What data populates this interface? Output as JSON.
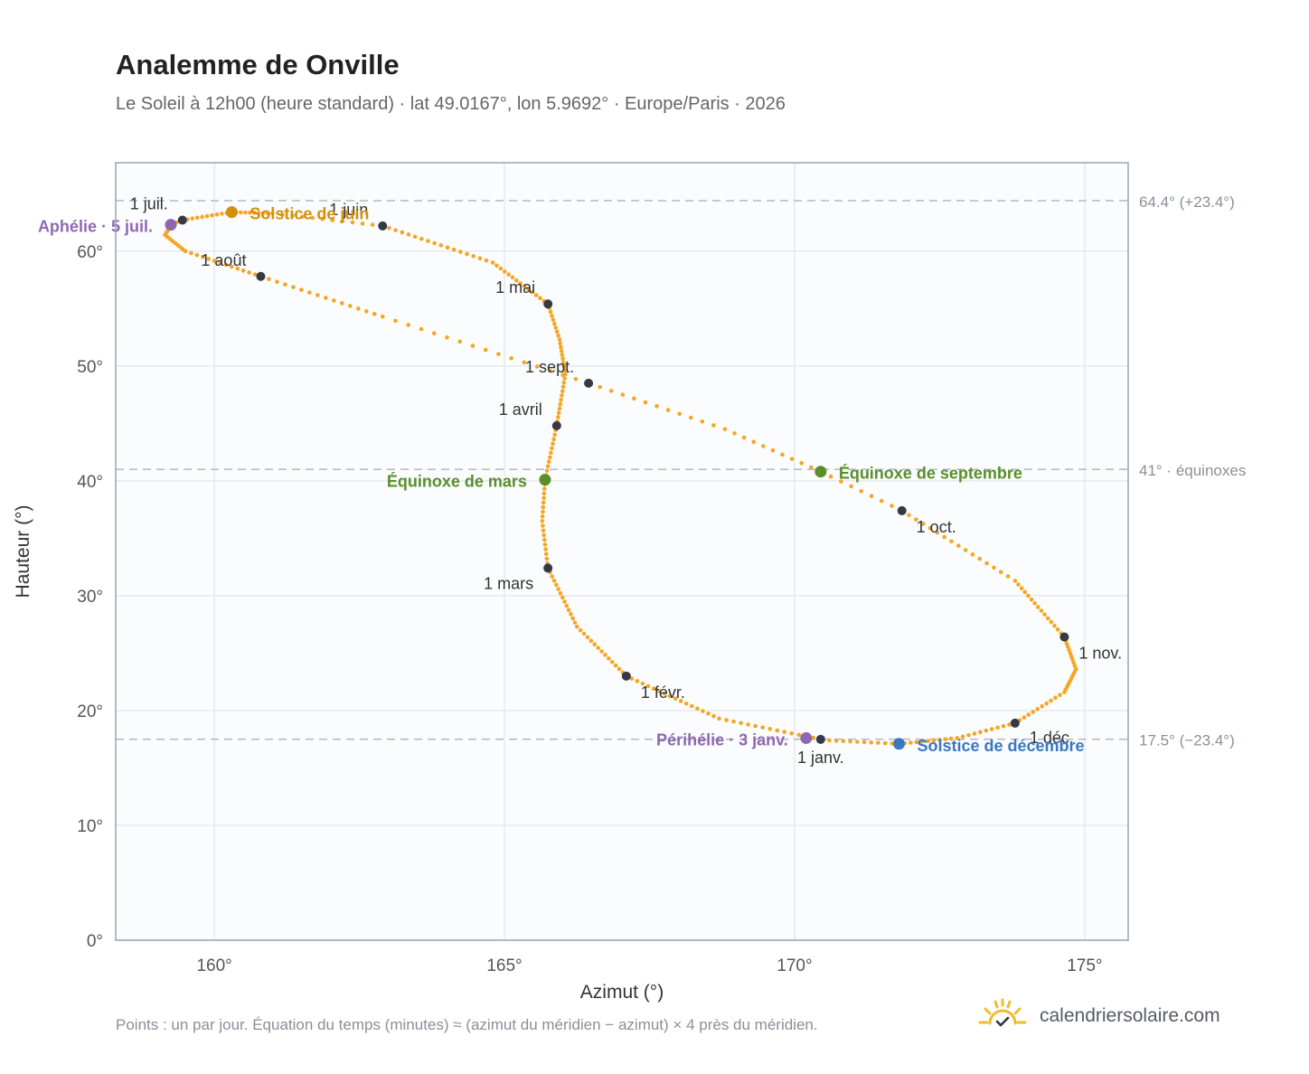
{
  "header": {
    "title": "Analemme de Onville",
    "subtitle": "Le Soleil à 12h00 (heure standard) · lat 49.0167°, lon 5.9692° · Europe/Paris · 2026"
  },
  "footer": {
    "note": "Points : un par jour. Équation du temps (minutes) ≈ (azimut du méridien − azimut) × 4 près du méridien.",
    "brand": "calendriersolaire.com",
    "brand_icon": "sun-check-icon"
  },
  "colors": {
    "curve": "#f5a623",
    "month_marker": "#333a44",
    "solstice_june": "#d4900a",
    "solstice_december": "#3a78c2",
    "equinox": "#5a8f2a",
    "apsis": "#8e68b0",
    "plot_bg": "#fafcfe",
    "grid": "#e6e9ee",
    "frame": "#9aa3b0",
    "refline": "#b8bec7"
  },
  "chart_data": {
    "type": "scatter",
    "xlabel": "Azimut (°)",
    "ylabel": "Hauteur (°)",
    "xlim": [
      158.3,
      175.75
    ],
    "ylim": [
      0,
      67.7
    ],
    "x_ticks": [
      {
        "value": 160,
        "label": "160°"
      },
      {
        "value": 165,
        "label": "165°"
      },
      {
        "value": 170,
        "label": "170°"
      },
      {
        "value": 175,
        "label": "175°"
      }
    ],
    "y_ticks": [
      {
        "value": 0,
        "label": "0°"
      },
      {
        "value": 10,
        "label": "10°"
      },
      {
        "value": 20,
        "label": "20°"
      },
      {
        "value": 30,
        "label": "30°"
      },
      {
        "value": 40,
        "label": "40°"
      },
      {
        "value": 50,
        "label": "50°"
      },
      {
        "value": 60,
        "label": "60°"
      }
    ],
    "grid": true,
    "reference_lines": [
      {
        "y": 64.4,
        "label": "64.4° (+23.4°)"
      },
      {
        "y": 41.0,
        "label": "41° · équinoxes"
      },
      {
        "y": 17.5,
        "label": "17.5° (−23.4°)"
      }
    ],
    "daily_path": [
      {
        "day": 1,
        "az": 170.45,
        "alt": 17.49
      },
      {
        "day": 15,
        "az": 168.7,
        "alt": 19.3
      },
      {
        "day": 32,
        "az": 167.1,
        "alt": 23.0
      },
      {
        "day": 46,
        "az": 166.25,
        "alt": 27.3
      },
      {
        "day": 60,
        "az": 165.75,
        "alt": 32.4
      },
      {
        "day": 70,
        "az": 165.65,
        "alt": 36.5
      },
      {
        "day": 79,
        "az": 165.7,
        "alt": 40.1
      },
      {
        "day": 91,
        "az": 165.9,
        "alt": 44.8
      },
      {
        "day": 103,
        "az": 166.05,
        "alt": 49.3
      },
      {
        "day": 112,
        "az": 165.95,
        "alt": 52.3
      },
      {
        "day": 121,
        "az": 165.75,
        "alt": 55.4
      },
      {
        "day": 135,
        "az": 164.8,
        "alt": 59.0
      },
      {
        "day": 152,
        "az": 162.9,
        "alt": 62.2
      },
      {
        "day": 163,
        "az": 161.0,
        "alt": 63.3
      },
      {
        "day": 172,
        "az": 160.3,
        "alt": 63.4
      },
      {
        "day": 182,
        "az": 159.45,
        "alt": 62.7
      },
      {
        "day": 186,
        "az": 159.25,
        "alt": 62.3
      },
      {
        "day": 192,
        "az": 159.15,
        "alt": 61.4
      },
      {
        "day": 200,
        "az": 159.5,
        "alt": 60.0
      },
      {
        "day": 213,
        "az": 160.8,
        "alt": 57.8
      },
      {
        "day": 228,
        "az": 162.9,
        "alt": 54.3
      },
      {
        "day": 244,
        "az": 166.45,
        "alt": 48.5
      },
      {
        "day": 256,
        "az": 168.8,
        "alt": 44.5
      },
      {
        "day": 266,
        "az": 170.45,
        "alt": 40.8
      },
      {
        "day": 274,
        "az": 171.85,
        "alt": 37.4
      },
      {
        "day": 290,
        "az": 173.8,
        "alt": 31.3
      },
      {
        "day": 305,
        "az": 174.65,
        "alt": 26.4
      },
      {
        "day": 315,
        "az": 174.85,
        "alt": 23.6
      },
      {
        "day": 324,
        "az": 174.65,
        "alt": 21.6
      },
      {
        "day": 335,
        "az": 173.8,
        "alt": 18.9
      },
      {
        "day": 345,
        "az": 172.8,
        "alt": 17.6
      },
      {
        "day": 355,
        "az": 171.8,
        "alt": 17.1
      },
      {
        "day": 365,
        "az": 170.6,
        "alt": 17.4
      }
    ],
    "month_markers": [
      {
        "label": "1 janv.",
        "az": 170.45,
        "alt": 17.49,
        "anchor": "middle",
        "dx": 0,
        "dy": 26
      },
      {
        "label": "1 févr.",
        "az": 167.1,
        "alt": 23.0,
        "anchor": "start",
        "dx": 16,
        "dy": 24
      },
      {
        "label": "1 mars",
        "az": 165.75,
        "alt": 32.4,
        "anchor": "end",
        "dx": -16,
        "dy": 23
      },
      {
        "label": "1 avril",
        "az": 165.9,
        "alt": 44.8,
        "anchor": "end",
        "dx": -16,
        "dy": -12
      },
      {
        "label": "1 mai",
        "az": 165.75,
        "alt": 55.4,
        "anchor": "end",
        "dx": -14,
        "dy": -12
      },
      {
        "label": "1 juin",
        "az": 162.9,
        "alt": 62.2,
        "anchor": "end",
        "dx": -16,
        "dy": -12
      },
      {
        "label": "1 juil.",
        "az": 159.45,
        "alt": 62.7,
        "anchor": "end",
        "dx": -16,
        "dy": -12
      },
      {
        "label": "1 août",
        "az": 160.8,
        "alt": 57.8,
        "anchor": "end",
        "dx": -16,
        "dy": -12
      },
      {
        "label": "1 sept.",
        "az": 166.45,
        "alt": 48.5,
        "anchor": "end",
        "dx": -16,
        "dy": -12
      },
      {
        "label": "1 oct.",
        "az": 171.85,
        "alt": 37.4,
        "anchor": "start",
        "dx": 16,
        "dy": 24
      },
      {
        "label": "1 nov.",
        "az": 174.65,
        "alt": 26.4,
        "anchor": "start",
        "dx": 16,
        "dy": 24
      },
      {
        "label": "1 déc.",
        "az": 173.8,
        "alt": 18.9,
        "anchor": "start",
        "dx": 16,
        "dy": 22
      }
    ],
    "events": [
      {
        "label": "Solstice de juin",
        "az": 160.3,
        "alt": 63.4,
        "color": "#d4900a",
        "anchor": "start",
        "dx": 20,
        "dy": 8
      },
      {
        "label": "Aphélie · 5 juil.",
        "az": 159.25,
        "alt": 62.3,
        "color": "#8e68b0",
        "anchor": "end",
        "dx": -20,
        "dy": 8
      },
      {
        "label": "Équinoxe de mars",
        "az": 165.7,
        "alt": 40.1,
        "color": "#5a8f2a",
        "anchor": "end",
        "dx": -20,
        "dy": 8
      },
      {
        "label": "Équinoxe de septembre",
        "az": 170.45,
        "alt": 40.8,
        "color": "#5a8f2a",
        "anchor": "start",
        "dx": 20,
        "dy": 8
      },
      {
        "label": "Périhélie · 3 janv.",
        "az": 170.2,
        "alt": 17.6,
        "color": "#8e68b0",
        "anchor": "end",
        "dx": -20,
        "dy": 8
      },
      {
        "label": "Solstice de décembre",
        "az": 171.8,
        "alt": 17.1,
        "color": "#3a78c2",
        "anchor": "start",
        "dx": 20,
        "dy": 8
      }
    ]
  }
}
